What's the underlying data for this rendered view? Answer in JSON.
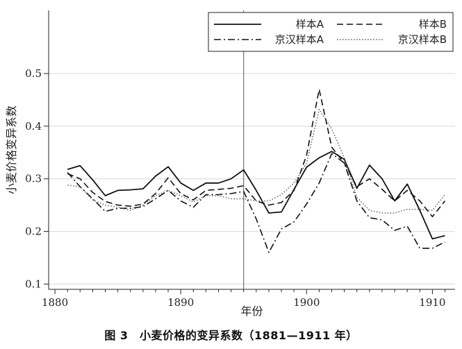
{
  "caption": "图 3　小麦价格的变异系数（1881—1911 年）",
  "chart_data": {
    "type": "line",
    "title": "",
    "xlabel": "年份",
    "ylabel": "小麦价格变异系数",
    "xlim": [
      1879.5,
      1911.8
    ],
    "ylim": [
      0.09,
      0.62
    ],
    "xticks": [
      1880,
      1890,
      1900,
      1910
    ],
    "yticks": [
      0.1,
      0.2,
      0.3,
      0.4,
      0.5
    ],
    "ytick_labels": [
      "0.1",
      "0.2",
      "0.3",
      "0.4",
      "0.5"
    ],
    "grid": "horizontal",
    "vline": 1895,
    "legend_position": "top-right",
    "x": [
      1881,
      1882,
      1883,
      1884,
      1885,
      1886,
      1887,
      1888,
      1889,
      1890,
      1891,
      1892,
      1893,
      1894,
      1895,
      1896,
      1897,
      1898,
      1899,
      1900,
      1901,
      1902,
      1903,
      1904,
      1905,
      1906,
      1907,
      1908,
      1909,
      1910,
      1911
    ],
    "series": [
      {
        "name": "样本A",
        "style": "solid",
        "color": "#111111",
        "width": 1.8,
        "values": [
          0.318,
          0.325,
          0.298,
          0.268,
          0.278,
          0.279,
          0.281,
          0.305,
          0.323,
          0.292,
          0.278,
          0.292,
          0.292,
          0.3,
          0.317,
          0.278,
          0.235,
          0.237,
          0.28,
          0.322,
          0.34,
          0.352,
          0.337,
          0.282,
          0.326,
          0.3,
          0.258,
          0.29,
          0.24,
          0.186,
          0.192
        ]
      },
      {
        "name": "样本B",
        "style": "dash",
        "color": "#111111",
        "width": 1.6,
        "values": [
          0.31,
          0.3,
          0.274,
          0.257,
          0.25,
          0.248,
          0.252,
          0.272,
          0.302,
          0.272,
          0.26,
          0.278,
          0.28,
          0.282,
          0.287,
          0.258,
          0.25,
          0.255,
          0.278,
          0.345,
          0.47,
          0.36,
          0.33,
          0.285,
          0.3,
          0.28,
          0.258,
          0.278,
          0.258,
          0.228,
          0.258
        ]
      },
      {
        "name": "京汉样本A",
        "style": "dashdot",
        "color": "#111111",
        "width": 1.6,
        "values": [
          0.312,
          0.285,
          0.262,
          0.238,
          0.244,
          0.244,
          0.247,
          0.262,
          0.278,
          0.258,
          0.246,
          0.27,
          0.27,
          0.272,
          0.276,
          0.224,
          0.16,
          0.205,
          0.218,
          0.252,
          0.292,
          0.348,
          0.33,
          0.258,
          0.226,
          0.222,
          0.202,
          0.21,
          0.168,
          0.168,
          0.18
        ]
      },
      {
        "name": "京汉样本B",
        "style": "dot",
        "color": "#555555",
        "width": 1.4,
        "values": [
          0.288,
          0.285,
          0.26,
          0.25,
          0.246,
          0.24,
          0.25,
          0.268,
          0.278,
          0.268,
          0.256,
          0.268,
          0.268,
          0.262,
          0.262,
          0.258,
          0.258,
          0.27,
          0.292,
          0.33,
          0.432,
          0.395,
          0.34,
          0.265,
          0.24,
          0.235,
          0.235,
          0.242,
          0.242,
          0.24,
          0.27
        ]
      }
    ]
  }
}
